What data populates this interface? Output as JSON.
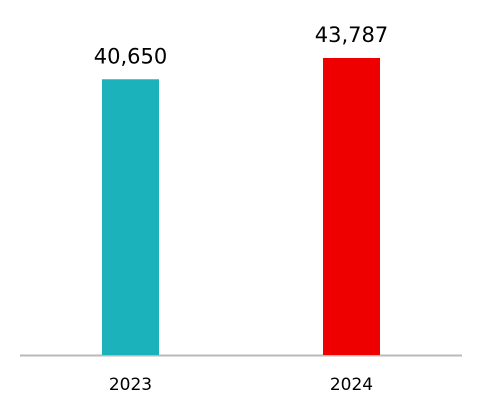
{
  "chart_data": {
    "type": "bar",
    "categories": [
      "2023",
      "2024"
    ],
    "values": [
      40650,
      43787
    ],
    "value_labels": [
      "40,650",
      "43,787"
    ],
    "colors": [
      "#1bb2bb",
      "#ee0000"
    ]
  }
}
